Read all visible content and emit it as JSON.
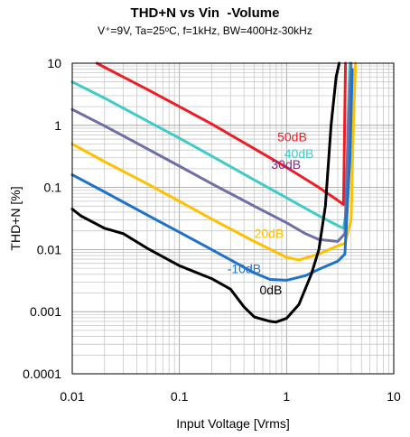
{
  "chart_data": {
    "type": "line",
    "title": "THD+N vs Vin  -Volume",
    "subtitle": "V⁺=9V, Ta=25ᵒC, f=1kHz, BW=400Hz-30kHz",
    "xlabel": "Input Voltage [Vrms]",
    "ylabel": "THD+N [%]",
    "xscale": "log",
    "yscale": "log",
    "xlim": [
      0.01,
      10
    ],
    "ylim": [
      0.0001,
      10
    ],
    "x_ticks": [
      "0.01",
      "0.1",
      "1",
      "10"
    ],
    "y_ticks": [
      "0.0001",
      "0.001",
      "0.01",
      "0.1",
      "1",
      "10"
    ],
    "grid": true,
    "legend": "inline labels",
    "series": [
      {
        "name": "50dB",
        "color": "#ee1c24",
        "label_at": [
          0.82,
          0.55
        ],
        "points": [
          [
            0.017,
            10
          ],
          [
            0.02,
            8.6
          ],
          [
            0.03,
            6
          ],
          [
            0.05,
            3.8
          ],
          [
            0.1,
            2.0
          ],
          [
            0.2,
            1.05
          ],
          [
            0.5,
            0.42
          ],
          [
            1,
            0.21
          ],
          [
            2,
            0.1
          ],
          [
            3,
            0.062
          ],
          [
            3.4,
            0.053
          ],
          [
            3.5,
            2
          ],
          [
            3.55,
            10
          ]
        ]
      },
      {
        "name": "40dB",
        "color": "#3ecbc9",
        "label_at": [
          0.95,
          0.3
        ],
        "points": [
          [
            0.01,
            5
          ],
          [
            0.02,
            2.75
          ],
          [
            0.05,
            1.18
          ],
          [
            0.1,
            0.62
          ],
          [
            0.2,
            0.32
          ],
          [
            0.5,
            0.132
          ],
          [
            1,
            0.068
          ],
          [
            2,
            0.035
          ],
          [
            3.2,
            0.023
          ],
          [
            3.4,
            0.022
          ],
          [
            3.6,
            0.04
          ],
          [
            3.8,
            3
          ],
          [
            3.9,
            10
          ]
        ]
      },
      {
        "name": "30dB",
        "color": "#7b2a87",
        "label_at": [
          0.72,
          0.2
        ],
        "line_color": "#6f6fa8",
        "points": [
          [
            0.01,
            1.8
          ],
          [
            0.02,
            0.98
          ],
          [
            0.05,
            0.42
          ],
          [
            0.1,
            0.22
          ],
          [
            0.2,
            0.115
          ],
          [
            0.5,
            0.05
          ],
          [
            1,
            0.027
          ],
          [
            1.5,
            0.018
          ],
          [
            2,
            0.0145
          ],
          [
            3,
            0.0135
          ],
          [
            3.5,
            0.018
          ],
          [
            3.8,
            1.5
          ],
          [
            4.0,
            10
          ]
        ]
      },
      {
        "name": "20dB",
        "color": "#ffc000",
        "label_at": [
          0.5,
          0.0155
        ],
        "points": [
          [
            0.01,
            0.5
          ],
          [
            0.02,
            0.26
          ],
          [
            0.05,
            0.115
          ],
          [
            0.1,
            0.06
          ],
          [
            0.2,
            0.031
          ],
          [
            0.5,
            0.0135
          ],
          [
            1,
            0.0075
          ],
          [
            1.3,
            0.0068
          ],
          [
            2,
            0.0085
          ],
          [
            3,
            0.0115
          ],
          [
            3.5,
            0.0125
          ],
          [
            4,
            0.03
          ],
          [
            4.2,
            1
          ],
          [
            4.4,
            10
          ]
        ]
      },
      {
        "name": "-10dB",
        "color": "#1e72c8",
        "label_at": [
          0.28,
          0.0042
        ],
        "points": [
          [
            0.01,
            0.16
          ],
          [
            0.02,
            0.085
          ],
          [
            0.05,
            0.036
          ],
          [
            0.1,
            0.019
          ],
          [
            0.2,
            0.01
          ],
          [
            0.5,
            0.0042
          ],
          [
            0.7,
            0.0033
          ],
          [
            1,
            0.0032
          ],
          [
            1.5,
            0.0038
          ],
          [
            2,
            0.0048
          ],
          [
            3,
            0.0065
          ],
          [
            3.5,
            0.0085
          ],
          [
            3.9,
            0.3
          ],
          [
            4.1,
            8
          ]
        ]
      },
      {
        "name": "0dB",
        "color": "#000000",
        "label_at": [
          0.56,
          0.0019
        ],
        "points": [
          [
            0.01,
            0.045
          ],
          [
            0.012,
            0.035
          ],
          [
            0.02,
            0.022
          ],
          [
            0.03,
            0.018
          ],
          [
            0.05,
            0.0105
          ],
          [
            0.1,
            0.0055
          ],
          [
            0.2,
            0.0034
          ],
          [
            0.3,
            0.0023
          ],
          [
            0.4,
            0.0012
          ],
          [
            0.5,
            0.00082
          ],
          [
            0.7,
            0.0007
          ],
          [
            0.8,
            0.00068
          ],
          [
            1,
            0.00078
          ],
          [
            1.3,
            0.0013
          ],
          [
            1.7,
            0.004
          ],
          [
            2,
            0.01
          ],
          [
            2.3,
            0.05
          ],
          [
            2.6,
            1
          ],
          [
            2.9,
            6
          ],
          [
            3.1,
            10
          ]
        ]
      }
    ]
  }
}
